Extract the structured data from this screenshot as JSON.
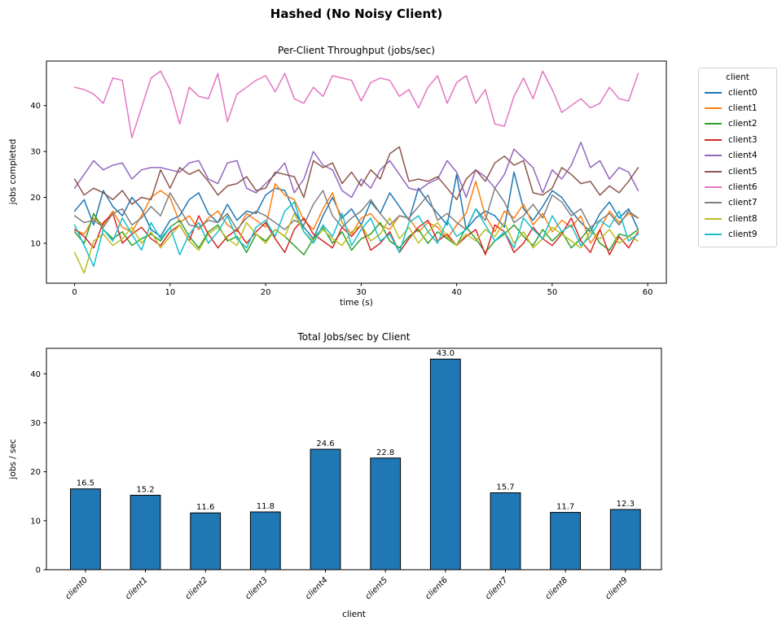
{
  "figure": {
    "title": "Hashed (No Noisy Client)"
  },
  "legend": {
    "title": "client",
    "entries": [
      "client0",
      "client1",
      "client2",
      "client3",
      "client4",
      "client5",
      "client6",
      "client7",
      "client8",
      "client9"
    ]
  },
  "colors": {
    "client0": "#1f77b4",
    "client1": "#ff7f0e",
    "client2": "#2ca02c",
    "client3": "#d62728",
    "client4": "#9467bd",
    "client5": "#8c564b",
    "client6": "#e377c2",
    "client7": "#7f7f7f",
    "client8": "#bcbd22",
    "client9": "#17becf",
    "bar_fill": "#1f77b4",
    "bar_edge": "#000000",
    "spine": "#000000"
  },
  "chart_data": [
    {
      "type": "line",
      "title": "Per-Client Throughput (jobs/sec)",
      "xlabel": "time (s)",
      "ylabel": "jobs completed",
      "xlim": [
        -2.95,
        61.95
      ],
      "ylim": [
        1.3,
        49.7
      ],
      "xticks": [
        0,
        10,
        20,
        30,
        40,
        50,
        60
      ],
      "yticks": [
        10,
        20,
        30,
        40
      ],
      "grid": false,
      "legend_position": "right-outside",
      "x_start": 0,
      "x_step": 1,
      "series": [
        {
          "name": "client0",
          "color": "#1f77b4",
          "values": [
            17,
            19.5,
            14,
            21.5,
            18,
            16,
            20,
            17.5,
            13,
            11.5,
            15,
            16,
            19.5,
            21,
            16.5,
            14.5,
            18.5,
            15,
            17,
            16.5,
            20.5,
            22,
            21.5,
            17,
            13.5,
            11,
            16,
            20,
            15.5,
            17.5,
            14,
            19,
            16.5,
            21,
            18,
            15,
            22,
            19,
            16.5,
            14,
            25,
            13,
            15.5,
            17,
            16,
            13.5,
            25.5,
            17.5,
            15,
            18,
            21.5,
            20,
            17,
            14.5,
            12.5,
            16.5,
            19,
            15.5,
            17.5,
            13
          ]
        },
        {
          "name": "client1",
          "color": "#ff7f0e",
          "values": [
            13,
            12,
            15.5,
            14,
            17,
            13.5,
            12.5,
            16,
            20,
            21.5,
            20,
            14.5,
            16,
            13,
            15.5,
            17,
            14,
            12.5,
            16.5,
            15,
            13.5,
            23,
            20.5,
            19.5,
            15,
            13,
            17.5,
            21,
            14.5,
            12,
            15.5,
            16.5,
            14,
            13,
            16,
            15.5,
            12.5,
            14.5,
            13.5,
            11,
            14,
            16.5,
            23.5,
            16,
            12.5,
            17,
            15.5,
            18.5,
            14,
            16.5,
            12.5,
            15,
            13.5,
            16,
            10,
            13,
            17,
            14.5,
            16.5,
            15.5
          ]
        },
        {
          "name": "client2",
          "color": "#2ca02c",
          "values": [
            12.5,
            10,
            16.5,
            13,
            11,
            12.5,
            9.5,
            11,
            12,
            10.5,
            13.5,
            15,
            11.5,
            9,
            12.5,
            14,
            10.5,
            11.5,
            8,
            12,
            10.5,
            13,
            11.5,
            9.5,
            7.5,
            11,
            13.5,
            10,
            12.5,
            8.5,
            11,
            12,
            14.5,
            10.5,
            9,
            11.5,
            13,
            10,
            12.5,
            11,
            9.5,
            13.5,
            11,
            8,
            10.5,
            12,
            14,
            11.5,
            9.5,
            13,
            10.5,
            12.5,
            9,
            11,
            13.5,
            10,
            8.5,
            12,
            11.5,
            13
          ]
        },
        {
          "name": "client3",
          "color": "#d62728",
          "values": [
            13,
            11.5,
            9,
            14.5,
            16.5,
            10,
            12,
            13.5,
            11,
            9.5,
            12.5,
            14,
            10.5,
            16,
            12,
            9,
            11.5,
            13,
            10,
            12.5,
            14.5,
            11,
            8,
            13,
            15.5,
            12,
            10.5,
            9,
            13.5,
            11.5,
            14,
            8.5,
            10,
            12.5,
            8,
            11,
            13.5,
            15,
            10.5,
            12,
            9.5,
            11.5,
            13,
            7.5,
            14,
            12.5,
            8,
            10,
            13.5,
            11,
            9.5,
            12,
            15.5,
            10.5,
            8,
            13,
            7.5,
            11.5,
            9,
            12.5
          ]
        },
        {
          "name": "client4",
          "color": "#9467bd",
          "values": [
            22,
            25,
            28,
            26,
            27,
            27.5,
            24,
            26,
            26.5,
            26.5,
            26,
            25.5,
            27.5,
            28,
            24,
            23,
            27.5,
            28,
            22,
            21,
            23,
            25,
            27.5,
            21,
            24,
            30,
            27,
            26,
            21.5,
            20,
            24,
            22,
            26,
            28,
            25,
            22,
            21.5,
            23,
            24,
            28,
            25.5,
            20,
            26,
            24.5,
            22,
            25,
            30.5,
            28.5,
            26.5,
            21,
            26,
            24,
            27,
            32,
            26.5,
            28,
            24,
            26.5,
            25.5,
            21.5
          ]
        },
        {
          "name": "client5",
          "color": "#8c564b",
          "values": [
            24,
            20.5,
            22,
            21,
            19.5,
            21.5,
            18.5,
            20,
            19.5,
            26,
            22,
            26.5,
            25,
            26,
            23.5,
            20.5,
            22.5,
            23,
            24.5,
            21.5,
            22,
            25.5,
            25,
            24.5,
            20,
            28,
            26.5,
            27.5,
            23,
            25.5,
            22.5,
            26,
            24,
            29.5,
            31,
            23.5,
            24,
            23.5,
            24.5,
            22,
            19.5,
            24,
            26,
            23.5,
            27.5,
            29,
            27,
            28,
            21,
            20.5,
            22,
            26.5,
            25,
            23,
            23.5,
            20.5,
            22.5,
            21,
            23.5,
            26.5
          ]
        },
        {
          "name": "client6",
          "color": "#e377c2",
          "values": [
            44,
            43.5,
            42.5,
            40.5,
            46,
            45.5,
            33,
            39.5,
            46,
            47.5,
            43.5,
            36,
            44,
            42,
            41.5,
            47,
            36.5,
            42.5,
            44,
            45.5,
            46.5,
            43,
            47,
            41.5,
            40.5,
            44,
            42,
            46.5,
            46,
            45.5,
            41,
            45,
            46,
            45.5,
            42,
            43.5,
            39.5,
            44,
            46.5,
            40.5,
            45,
            46.5,
            40.5,
            43.5,
            36,
            35.5,
            42,
            46,
            41.5,
            47.5,
            43.5,
            38.5,
            40,
            41.5,
            39.5,
            40.5,
            44,
            41.5,
            41,
            47
          ]
        },
        {
          "name": "client7",
          "color": "#7f7f7f",
          "values": [
            16,
            14.5,
            15,
            13.5,
            16.5,
            17.5,
            14,
            15.5,
            18,
            16,
            21,
            17.5,
            14,
            13.5,
            15,
            14.5,
            16.5,
            13,
            15.5,
            17,
            16,
            14.5,
            13,
            15,
            14,
            18.5,
            21.5,
            16,
            13.5,
            15.5,
            17,
            19.5,
            16.5,
            14,
            16,
            15.5,
            18,
            20.5,
            15,
            16.5,
            14.5,
            13,
            17.5,
            15,
            22,
            19,
            14.5,
            16,
            18.5,
            15.5,
            20.5,
            19,
            16,
            17.5,
            13.5,
            15,
            16.5,
            14,
            17,
            15.5
          ]
        },
        {
          "name": "client8",
          "color": "#bcbd22",
          "values": [
            8,
            3.5,
            10.5,
            12,
            9.5,
            11,
            13.5,
            10,
            12.5,
            9,
            11.5,
            14,
            10.5,
            8.5,
            12,
            13.5,
            11,
            9.5,
            14.5,
            12,
            10,
            13,
            11.5,
            16.5,
            12.5,
            10.5,
            13,
            11,
            9.5,
            12.5,
            14,
            10.5,
            12,
            15.5,
            11,
            13.5,
            10,
            12.5,
            14.5,
            11.5,
            9.5,
            12,
            10.5,
            13,
            11.5,
            14.5,
            10,
            12.5,
            9,
            11,
            13.5,
            12,
            10.5,
            9,
            12.5,
            11,
            13,
            10,
            11.5,
            10.5
          ]
        },
        {
          "name": "client9",
          "color": "#17becf",
          "values": [
            14,
            9.5,
            5,
            13,
            10.5,
            15.5,
            12,
            8.5,
            14.5,
            11,
            13.5,
            7.5,
            12,
            14.5,
            10,
            12.5,
            16,
            11,
            9,
            13.5,
            15,
            11.5,
            17,
            19,
            12.5,
            10,
            14,
            11.5,
            16.5,
            9.5,
            13,
            15.5,
            10.5,
            12,
            8,
            14.5,
            16,
            12.5,
            10,
            15,
            11.5,
            13,
            17.5,
            14,
            10.5,
            12.5,
            9,
            15.5,
            13,
            11,
            16,
            12.5,
            14,
            9.5,
            11.5,
            15,
            13.5,
            17,
            10.5,
            12
          ]
        }
      ]
    },
    {
      "type": "bar",
      "title": "Total Jobs/sec by Client",
      "xlabel": "client",
      "ylabel": "jobs / sec",
      "categories": [
        "client0",
        "client1",
        "client2",
        "client3",
        "client4",
        "client5",
        "client6",
        "client7",
        "client8",
        "client9"
      ],
      "values": [
        16.5,
        15.2,
        11.6,
        11.8,
        24.6,
        22.8,
        43.0,
        15.7,
        11.7,
        12.3
      ],
      "value_labels": [
        "16.5",
        "15.2",
        "11.6",
        "11.8",
        "24.6",
        "22.8",
        "43.0",
        "15.7",
        "11.7",
        "12.3"
      ],
      "ylim": [
        0,
        45.2
      ],
      "yticks": [
        0,
        10,
        20,
        30,
        40
      ],
      "grid": false,
      "bar_color": "#1f77b4",
      "bar_edge_color": "#000000"
    }
  ]
}
